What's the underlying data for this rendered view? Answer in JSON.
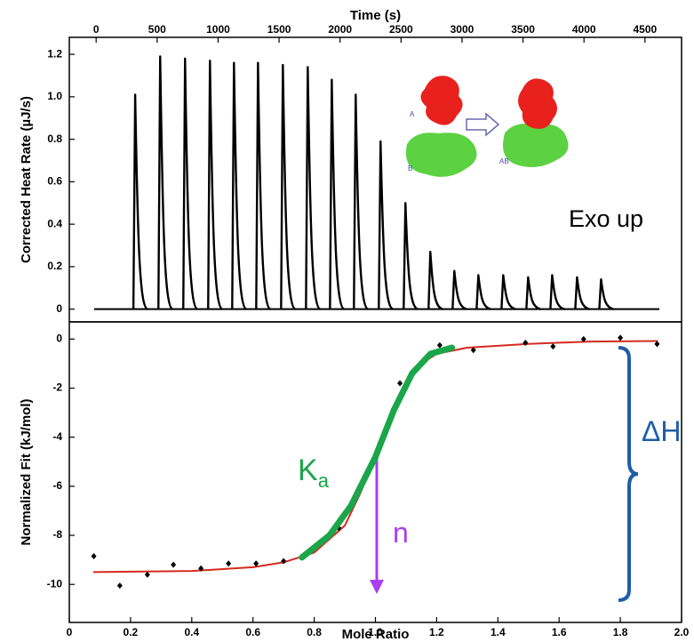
{
  "chart_data": [
    {
      "type": "spike",
      "x_label": "Time (s)",
      "y_label": "Corrected Heat Rate (µJ/s)",
      "color": "#000000",
      "x": [
        320,
        525,
        729,
        933,
        1130,
        1327,
        1531,
        1735,
        1932,
        2128,
        2332,
        2536,
        2740,
        2937,
        3134,
        3338,
        3542,
        3739,
        3943,
        4140
      ],
      "values": [
        1.01,
        1.19,
        1.18,
        1.17,
        1.16,
        1.16,
        1.15,
        1.14,
        1.08,
        1.01,
        0.79,
        0.5,
        0.27,
        0.18,
        0.16,
        0.16,
        0.15,
        0.16,
        0.15,
        0.14
      ],
      "xlim": [
        -220,
        4800
      ],
      "ylim": [
        -0.06,
        1.28
      ],
      "xticks": [
        0,
        500,
        1000,
        1500,
        2000,
        2500,
        3000,
        3500,
        4000,
        4500
      ],
      "yticks": [
        0,
        0.2,
        0.4,
        0.6,
        0.8,
        {
          "value": 1,
          "label": "1.0"
        },
        1.2
      ],
      "inset_labels": [
        "A",
        "B",
        "AB"
      ],
      "annotation": "Exo up"
    },
    {
      "type": "scatter-fit",
      "x_label": "Mole Ratio",
      "y_label": "Normalized Fit (kJ/mol)",
      "points": {
        "color": "#000000",
        "x": [
          0.08,
          0.165,
          0.255,
          0.34,
          0.43,
          0.52,
          0.61,
          0.7,
          0.88,
          1.08,
          1.21,
          1.32,
          1.49,
          1.58,
          1.68,
          1.8,
          1.92
        ],
        "values": [
          -8.85,
          -10.05,
          -9.6,
          -9.2,
          -9.35,
          -9.15,
          -9.15,
          -9.05,
          -7.7,
          -1.8,
          -0.25,
          -0.45,
          -0.15,
          -0.3,
          0,
          0.05,
          -0.2
        ]
      },
      "fit": {
        "color": "#d42a20",
        "x": [
          0.08,
          0.4,
          0.6,
          0.7,
          0.8,
          0.9,
          0.95,
          1.0,
          1.05,
          1.1,
          1.15,
          1.2,
          1.3,
          1.5,
          1.7,
          1.92
        ],
        "values": [
          -9.5,
          -9.45,
          -9.3,
          -9.1,
          -8.7,
          -7.6,
          -6.3,
          -4.8,
          -3.1,
          -1.8,
          -1.0,
          -0.6,
          -0.35,
          -0.2,
          -0.1,
          -0.08
        ]
      },
      "ka_fit": {
        "color": "#1aa64a",
        "x": [
          0.76,
          0.85,
          0.92,
          1.0,
          1.06,
          1.12,
          1.18,
          1.25
        ],
        "values": [
          -8.9,
          -8.0,
          -6.8,
          -4.8,
          -2.9,
          -1.4,
          -0.6,
          -0.35
        ]
      },
      "xlim": [
        0,
        2
      ],
      "ylim": [
        -11.55,
        0.7
      ],
      "xticks": [
        0,
        0.2,
        0.4,
        0.6,
        0.8,
        {
          "value": 1,
          "label": "1.0"
        },
        1.2,
        1.4,
        1.6,
        1.8,
        {
          "value": 2,
          "label": "2.0"
        }
      ],
      "yticks": [
        0,
        -2,
        -4,
        -6,
        -8,
        -10
      ],
      "ka_label": "K",
      "ka_subscript": "a",
      "n_label": "n",
      "dh_label": "ΔH"
    }
  ]
}
